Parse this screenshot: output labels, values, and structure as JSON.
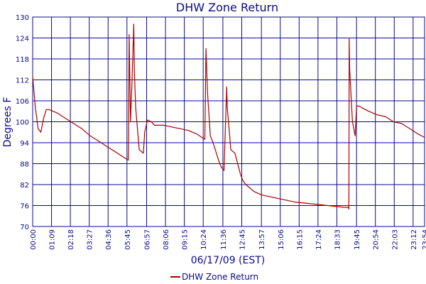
{
  "colors": {
    "grid": "#0a0a8c",
    "text": "#0a0a8c",
    "series": "#aa0000",
    "background": "#ffffff"
  },
  "chart_data": {
    "type": "line",
    "title": "DHW Zone Return",
    "xlabel": "06/17/09 (EST)",
    "ylabel": "Degrees F",
    "ylim": [
      70,
      130
    ],
    "xlim": [
      "00:00",
      "23:54"
    ],
    "y_ticks": [
      70,
      76,
      82,
      88,
      94,
      100,
      106,
      112,
      118,
      124,
      130
    ],
    "x_ticks": [
      "00:00",
      "01:09",
      "02:18",
      "03:27",
      "04:36",
      "05:45",
      "06:57",
      "08:06",
      "09:15",
      "10:24",
      "11:36",
      "12:45",
      "13:57",
      "15:06",
      "16:15",
      "17:24",
      "18:33",
      "19:45",
      "20:54",
      "22:03",
      "23:12",
      "23:54"
    ],
    "grid": true,
    "legend_position": "bottom",
    "series": [
      {
        "name": "DHW Zone Return",
        "color": "#aa0000",
        "x": [
          "00:00",
          "00:10",
          "00:20",
          "00:30",
          "00:40",
          "00:50",
          "01:00",
          "01:30",
          "02:00",
          "02:30",
          "03:00",
          "03:30",
          "04:00",
          "04:30",
          "05:00",
          "05:30",
          "05:50",
          "05:51",
          "05:53",
          "05:58",
          "06:03",
          "06:10",
          "06:12",
          "06:17",
          "06:30",
          "06:45",
          "06:50",
          "07:00",
          "07:15",
          "07:25",
          "07:40",
          "08:00",
          "08:30",
          "09:00",
          "09:30",
          "10:00",
          "10:30",
          "10:34",
          "10:40",
          "10:50",
          "11:00",
          "11:20",
          "11:30",
          "11:40",
          "11:50",
          "11:52",
          "12:05",
          "12:20",
          "12:40",
          "12:50",
          "13:00",
          "13:30",
          "14:00",
          "14:30",
          "15:00",
          "16:00",
          "17:00",
          "18:00",
          "19:00",
          "19:15",
          "19:17",
          "19:18",
          "19:20",
          "19:30",
          "19:40",
          "19:45",
          "19:55",
          "20:05",
          "20:30",
          "21:00",
          "21:30",
          "22:00",
          "22:30",
          "23:00",
          "23:30",
          "23:54"
        ],
        "y": [
          113,
          104,
          98,
          97,
          101,
          103.5,
          103.5,
          102.5,
          101,
          99.5,
          98,
          96,
          94.5,
          93,
          91.5,
          90,
          89,
          96,
          125,
          100,
          110,
          128,
          115,
          104,
          92,
          91,
          97,
          100.5,
          100,
          99,
          99,
          99,
          98.5,
          98,
          97.5,
          96.5,
          95,
          121,
          108,
          96,
          94,
          89,
          87,
          86,
          110,
          104,
          92,
          91,
          85,
          83,
          82,
          80,
          79,
          78.5,
          78,
          77,
          76.5,
          76,
          75.5,
          75.5,
          75,
          124,
          115,
          100,
          96,
          104.5,
          104.5,
          104,
          103,
          102,
          101.5,
          100,
          99.5,
          98,
          96.5,
          95.5
        ]
      }
    ],
    "legend": [
      {
        "label": "DHW Zone Return",
        "color": "#aa0000"
      }
    ]
  }
}
